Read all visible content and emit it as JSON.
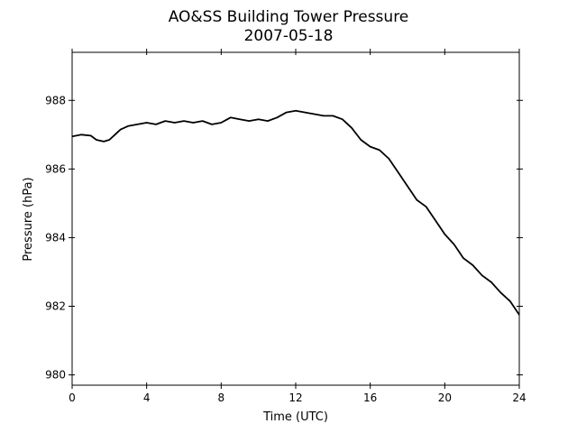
{
  "chart_data": {
    "type": "line",
    "title": "AO&SS Building Tower Pressure",
    "subtitle": "2007-05-18",
    "xlabel": "Time (UTC)",
    "ylabel": "Pressure (hPa)",
    "xlim": [
      0,
      24
    ],
    "ylim": [
      979.7,
      989.4
    ],
    "xticks": [
      0,
      4,
      8,
      12,
      16,
      20,
      24
    ],
    "yticks": [
      980,
      982,
      984,
      986,
      988
    ],
    "grid": false,
    "legend": "none",
    "series": [
      {
        "color": "#000000",
        "points": [
          [
            0.0,
            986.95
          ],
          [
            0.5,
            987.0
          ],
          [
            1.0,
            986.97
          ],
          [
            1.3,
            986.85
          ],
          [
            1.7,
            986.8
          ],
          [
            2.0,
            986.85
          ],
          [
            2.3,
            987.0
          ],
          [
            2.6,
            987.15
          ],
          [
            3.0,
            987.25
          ],
          [
            3.5,
            987.3
          ],
          [
            4.0,
            987.35
          ],
          [
            4.5,
            987.3
          ],
          [
            5.0,
            987.4
          ],
          [
            5.5,
            987.35
          ],
          [
            6.0,
            987.4
          ],
          [
            6.5,
            987.35
          ],
          [
            7.0,
            987.4
          ],
          [
            7.5,
            987.3
          ],
          [
            8.0,
            987.35
          ],
          [
            8.5,
            987.5
          ],
          [
            9.0,
            987.45
          ],
          [
            9.5,
            987.4
          ],
          [
            10.0,
            987.45
          ],
          [
            10.5,
            987.4
          ],
          [
            11.0,
            987.5
          ],
          [
            11.5,
            987.65
          ],
          [
            12.0,
            987.7
          ],
          [
            12.5,
            987.65
          ],
          [
            13.0,
            987.6
          ],
          [
            13.5,
            987.55
          ],
          [
            14.0,
            987.55
          ],
          [
            14.5,
            987.45
          ],
          [
            15.0,
            987.2
          ],
          [
            15.5,
            986.85
          ],
          [
            16.0,
            986.65
          ],
          [
            16.5,
            986.55
          ],
          [
            17.0,
            986.3
          ],
          [
            17.5,
            985.9
          ],
          [
            18.0,
            985.5
          ],
          [
            18.5,
            985.1
          ],
          [
            19.0,
            984.9
          ],
          [
            19.5,
            984.5
          ],
          [
            20.0,
            984.1
          ],
          [
            20.5,
            983.8
          ],
          [
            21.0,
            983.4
          ],
          [
            21.5,
            983.2
          ],
          [
            22.0,
            982.9
          ],
          [
            22.5,
            982.7
          ],
          [
            23.0,
            982.4
          ],
          [
            23.5,
            982.15
          ],
          [
            24.0,
            981.75
          ]
        ]
      }
    ]
  }
}
